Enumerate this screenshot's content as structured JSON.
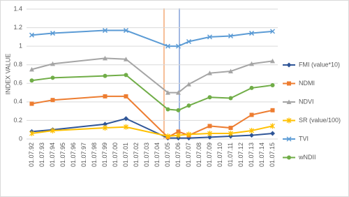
{
  "chart_data": {
    "type": "line",
    "y_label": "INDEX VALUE",
    "categories": [
      "01.07.92",
      "01.07.93",
      "01.07.94",
      "01.07.95",
      "01.07.96",
      "01.07.97",
      "01.07.98",
      "01.07.99",
      "01.07.00",
      "01.07.01",
      "01.07.02",
      "01.07.03",
      "01.07.04",
      "01.07.05",
      "01.07.06",
      "01.07.07",
      "01.07.08",
      "01.07.09",
      "01.07.10",
      "01.07.11",
      "01.07.12",
      "01.07.13",
      "01.07.14",
      "01.07.15"
    ],
    "x": [
      "01.07.92",
      "01.07.94",
      "01.07.99",
      "01.07.01",
      "01.07.05",
      "01.07.06",
      "01.07.07",
      "01.07.09",
      "01.07.11",
      "01.07.13",
      "01.07.15"
    ],
    "series": [
      {
        "name": "FMI (value*10)",
        "color": "#2f5597",
        "marker": "diamond",
        "values": [
          0.08,
          0.1,
          0.16,
          0.22,
          0.01,
          0.01,
          0.01,
          0.02,
          0.03,
          0.04,
          0.06
        ]
      },
      {
        "name": "NDMI",
        "color": "#ed7d31",
        "marker": "square",
        "values": [
          0.38,
          0.42,
          0.46,
          0.46,
          0.02,
          0.08,
          0.04,
          0.14,
          0.12,
          0.26,
          0.31
        ]
      },
      {
        "name": "NDVI",
        "color": "#a5a5a5",
        "marker": "triangle",
        "values": [
          0.75,
          0.81,
          0.87,
          0.86,
          0.5,
          0.5,
          0.59,
          0.71,
          0.73,
          0.81,
          0.84
        ]
      },
      {
        "name": "SR (value/100)",
        "color": "#ffc000",
        "marker": "star",
        "values": [
          0.06,
          0.09,
          0.12,
          0.13,
          0.03,
          0.04,
          0.05,
          0.06,
          0.06,
          0.09,
          0.14
        ]
      },
      {
        "name": "TVI",
        "color": "#5b9bd5",
        "marker": "x",
        "values": [
          1.12,
          1.14,
          1.17,
          1.17,
          1.0,
          1.0,
          1.05,
          1.1,
          1.11,
          1.14,
          1.16
        ]
      },
      {
        "name": "wNDII",
        "color": "#70ad47",
        "marker": "circle",
        "values": [
          0.63,
          0.66,
          0.68,
          0.69,
          0.32,
          0.31,
          0.36,
          0.45,
          0.44,
          0.55,
          0.58
        ]
      }
    ],
    "ylim": [
      0,
      1.4
    ],
    "yticks": [
      0,
      0.2,
      0.4,
      0.6,
      0.8,
      1,
      1.2,
      1.4
    ],
    "grid": true
  }
}
